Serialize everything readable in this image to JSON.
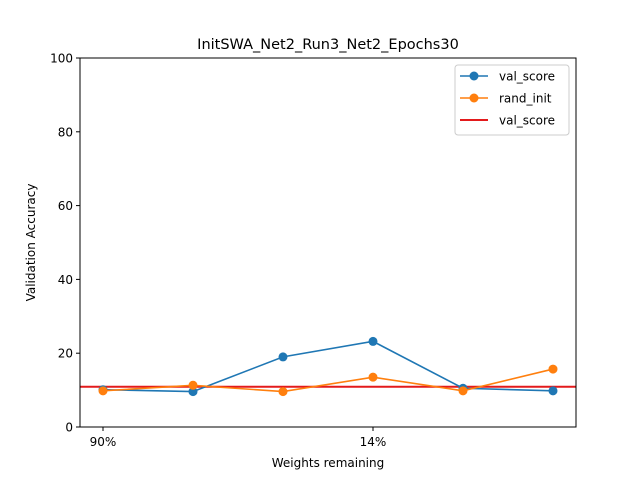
{
  "chart_data": {
    "type": "line",
    "title": "InitSWA_Net2_Run3_Net2_Epochs30",
    "xlabel": "Weights remaining",
    "ylabel": "Validation Accuracy",
    "ylim": [
      0,
      100
    ],
    "yticks": [
      "0",
      "20",
      "40",
      "60",
      "80",
      "100"
    ],
    "x_positions": [
      0,
      1,
      2,
      3,
      4,
      5
    ],
    "xticks": [
      {
        "pos": 0,
        "label": "90%"
      },
      {
        "pos": 3,
        "label": "14%"
      }
    ],
    "series": [
      {
        "name": "val_score",
        "color": "#1f77b4",
        "marker": "circle",
        "values": [
          10.1,
          9.6,
          19.0,
          23.2,
          10.5,
          9.8
        ]
      },
      {
        "name": "rand_init",
        "color": "#ff7f0e",
        "marker": "circle",
        "values": [
          9.8,
          11.3,
          9.6,
          13.5,
          9.8,
          15.7
        ]
      }
    ],
    "hlines": [
      {
        "name": "val_score",
        "color": "#e31a1c",
        "y": 10.9
      }
    ],
    "legend_position": "top-right",
    "grid": false
  }
}
